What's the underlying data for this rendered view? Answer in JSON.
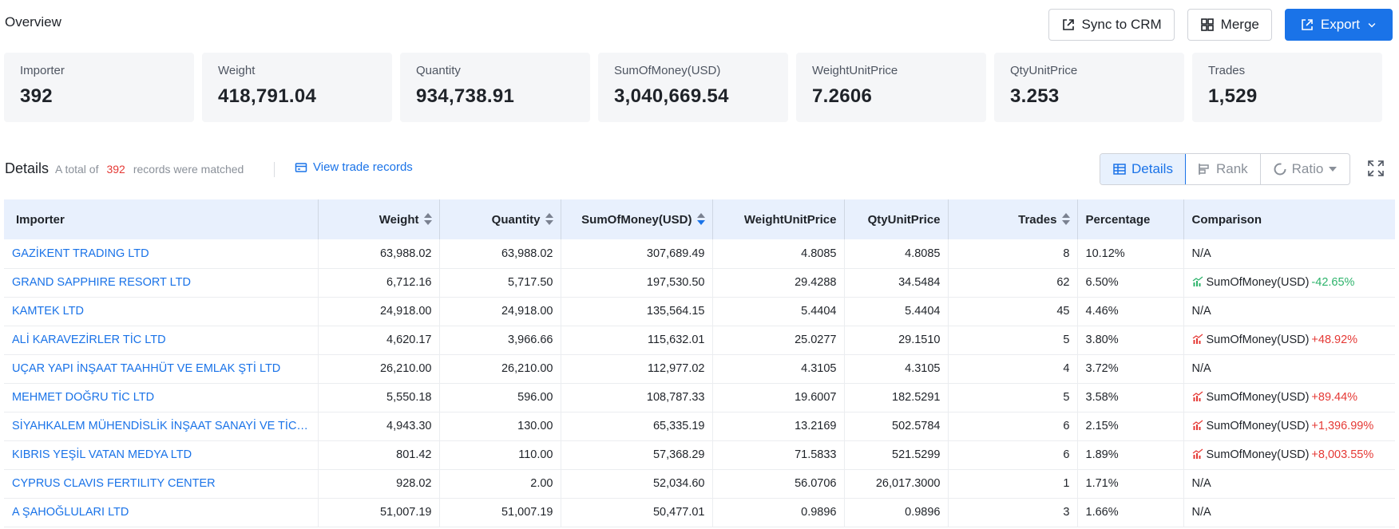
{
  "overview": {
    "title": "Overview",
    "sync_label": "Sync to CRM",
    "merge_label": "Merge",
    "export_label": "Export"
  },
  "stats": [
    {
      "label": "Importer",
      "value": "392"
    },
    {
      "label": "Weight",
      "value": "418,791.04"
    },
    {
      "label": "Quantity",
      "value": "934,738.91"
    },
    {
      "label": "SumOfMoney(USD)",
      "value": "3,040,669.54"
    },
    {
      "label": "WeightUnitPrice",
      "value": "7.2606"
    },
    {
      "label": "QtyUnitPrice",
      "value": "3.253"
    },
    {
      "label": "Trades",
      "value": "1,529"
    }
  ],
  "details": {
    "title": "Details",
    "summary_prefix": "A total of",
    "count": "392",
    "summary_suffix": "records were matched",
    "view_link": "View trade records",
    "tabs": {
      "details": "Details",
      "rank": "Rank",
      "ratio": "Ratio"
    }
  },
  "table": {
    "headers": {
      "importer": "Importer",
      "weight": "Weight",
      "quantity": "Quantity",
      "sum": "SumOfMoney(USD)",
      "wup": "WeightUnitPrice",
      "qup": "QtyUnitPrice",
      "trades": "Trades",
      "percentage": "Percentage",
      "comparison": "Comparison"
    },
    "rows": [
      {
        "name": "GAZİKENT TRADING LTD",
        "weight": "63,988.02",
        "quantity": "63,988.02",
        "sum": "307,689.49",
        "wup": "4.8085",
        "qup": "4.8085",
        "trades": "8",
        "pct": "10.12%",
        "cmp_label": "N/A",
        "cmp_change": "",
        "cmp_dir": "none"
      },
      {
        "name": "GRAND SAPPHIRE RESORT LTD",
        "weight": "6,712.16",
        "quantity": "5,717.50",
        "sum": "197,530.50",
        "wup": "29.4288",
        "qup": "34.5484",
        "trades": "62",
        "pct": "6.50%",
        "cmp_label": "SumOfMoney(USD)",
        "cmp_change": "-42.65%",
        "cmp_dir": "down"
      },
      {
        "name": "KAMTEK LTD",
        "weight": "24,918.00",
        "quantity": "24,918.00",
        "sum": "135,564.15",
        "wup": "5.4404",
        "qup": "5.4404",
        "trades": "45",
        "pct": "4.46%",
        "cmp_label": "N/A",
        "cmp_change": "",
        "cmp_dir": "none"
      },
      {
        "name": "ALİ KARAVEZİRLER TİC LTD",
        "weight": "4,620.17",
        "quantity": "3,966.66",
        "sum": "115,632.01",
        "wup": "25.0277",
        "qup": "29.1510",
        "trades": "5",
        "pct": "3.80%",
        "cmp_label": "SumOfMoney(USD)",
        "cmp_change": "+48.92%",
        "cmp_dir": "up"
      },
      {
        "name": "UÇAR YAPI İNŞAAT TAAHHÜT VE EMLAK ŞTİ LTD",
        "weight": "26,210.00",
        "quantity": "26,210.00",
        "sum": "112,977.02",
        "wup": "4.3105",
        "qup": "4.3105",
        "trades": "4",
        "pct": "3.72%",
        "cmp_label": "N/A",
        "cmp_change": "",
        "cmp_dir": "none"
      },
      {
        "name": "MEHMET DOĞRU TİC LTD",
        "weight": "5,550.18",
        "quantity": "596.00",
        "sum": "108,787.33",
        "wup": "19.6007",
        "qup": "182.5291",
        "trades": "5",
        "pct": "3.58%",
        "cmp_label": "SumOfMoney(USD)",
        "cmp_change": "+89.44%",
        "cmp_dir": "up"
      },
      {
        "name": "SİYAHKALEM MÜHENDİSLİK İNŞAAT SANAYİ VE TİCA...",
        "weight": "4,943.30",
        "quantity": "130.00",
        "sum": "65,335.19",
        "wup": "13.2169",
        "qup": "502.5784",
        "trades": "6",
        "pct": "2.15%",
        "cmp_label": "SumOfMoney(USD)",
        "cmp_change": "+1,396.99%",
        "cmp_dir": "up"
      },
      {
        "name": "KIBRIS YEŞİL VATAN MEDYA LTD",
        "weight": "801.42",
        "quantity": "110.00",
        "sum": "57,368.29",
        "wup": "71.5833",
        "qup": "521.5299",
        "trades": "6",
        "pct": "1.89%",
        "cmp_label": "SumOfMoney(USD)",
        "cmp_change": "+8,003.55%",
        "cmp_dir": "up"
      },
      {
        "name": "CYPRUS CLAVIS FERTILITY CENTER",
        "weight": "928.02",
        "quantity": "2.00",
        "sum": "52,034.60",
        "wup": "56.0706",
        "qup": "26,017.3000",
        "trades": "1",
        "pct": "1.71%",
        "cmp_label": "N/A",
        "cmp_change": "",
        "cmp_dir": "none"
      },
      {
        "name": "A ŞAHOĞLULARI LTD",
        "weight": "51,007.19",
        "quantity": "51,007.19",
        "sum": "50,477.01",
        "wup": "0.9896",
        "qup": "0.9896",
        "trades": "3",
        "pct": "1.66%",
        "cmp_label": "N/A",
        "cmp_change": "",
        "cmp_dir": "none"
      }
    ]
  },
  "colors": {
    "accent": "#1a73e8",
    "up": "#e53935",
    "down": "#2db36b"
  }
}
